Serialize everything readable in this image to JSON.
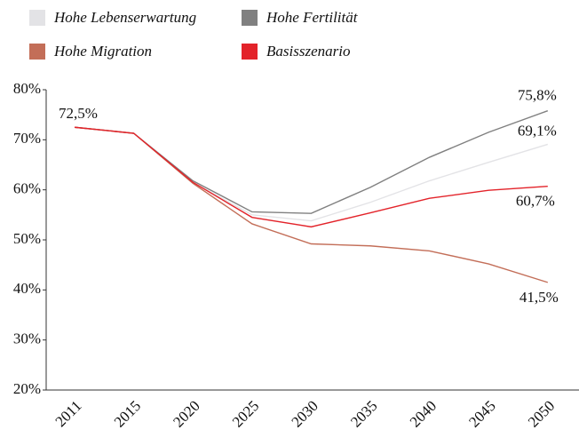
{
  "chart_data": {
    "type": "line",
    "categories": [
      "2011",
      "2015",
      "2020",
      "2025",
      "2030",
      "2035",
      "2040",
      "2045",
      "2050"
    ],
    "series": [
      {
        "name": "Hohe Lebenserwartung",
        "color": "#e3e3e6",
        "values": [
          72.5,
          71.3,
          61.5,
          55.0,
          53.8,
          57.5,
          61.8,
          65.5,
          69.1
        ],
        "value_labels": [
          null,
          null,
          null,
          null,
          null,
          null,
          null,
          null,
          "69,1%"
        ]
      },
      {
        "name": "Hohe Fertilität",
        "color": "#808080",
        "values": [
          72.5,
          71.3,
          61.8,
          55.6,
          55.3,
          60.5,
          66.5,
          71.5,
          75.8
        ],
        "value_labels": [
          null,
          null,
          null,
          null,
          null,
          null,
          null,
          null,
          "75,8%"
        ]
      },
      {
        "name": "Hohe Migration",
        "color": "#c36e58",
        "values": [
          72.5,
          71.3,
          61.3,
          53.2,
          49.2,
          48.8,
          47.8,
          45.2,
          41.5
        ],
        "value_labels": [
          null,
          null,
          null,
          null,
          null,
          null,
          null,
          null,
          "41,5%"
        ]
      },
      {
        "name": "Basisszenario",
        "color": "#e3232a",
        "values": [
          72.5,
          71.3,
          61.5,
          54.5,
          52.6,
          55.4,
          58.3,
          59.9,
          60.7
        ],
        "value_labels": [
          "72,5%",
          null,
          null,
          null,
          null,
          null,
          null,
          null,
          "60,7%"
        ]
      }
    ],
    "ylim": [
      20,
      80
    ],
    "yticks": [
      {
        "value": 20,
        "label": "20%"
      },
      {
        "value": 30,
        "label": "30%"
      },
      {
        "value": 40,
        "label": "40%"
      },
      {
        "value": 50,
        "label": "50%"
      },
      {
        "value": 60,
        "label": "60%"
      },
      {
        "value": 70,
        "label": "70%"
      },
      {
        "value": 80,
        "label": "80%"
      }
    ],
    "legend": "top"
  }
}
